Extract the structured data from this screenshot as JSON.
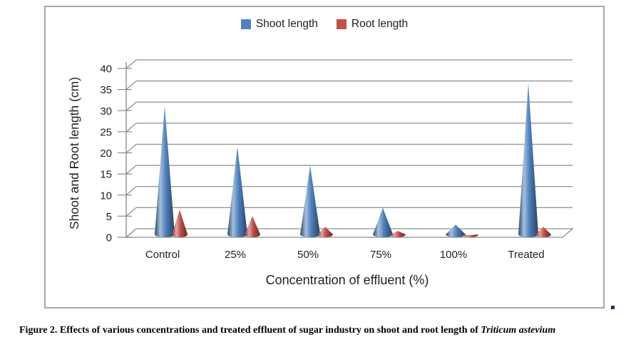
{
  "figure": {
    "caption_prefix": "Figure 2. Effects of various concentrations and treated effluent of sugar industry on shoot and root length of ",
    "caption_species_italic": "Triticum astevium"
  },
  "chart_data": {
    "type": "bar",
    "subtype": "3d-cone-columns",
    "categories": [
      "Control",
      "25%",
      "50%",
      "75%",
      "100%",
      "Treated"
    ],
    "series": [
      {
        "name": "Shoot length",
        "color": "#4F81BD",
        "values": [
          31,
          21.5,
          17,
          7,
          3,
          36.5
        ]
      },
      {
        "name": "Root length",
        "color": "#C0504D",
        "values": [
          6.5,
          5,
          2.5,
          1.5,
          0.5,
          2.5
        ]
      }
    ],
    "xlabel": "Concentration of effluent (%)",
    "ylabel": "Shoot and Root length (cm)",
    "ylim": [
      0,
      40
    ],
    "ytick_step": 5,
    "ytick_labels": [
      "0",
      "5",
      "10",
      "15",
      "20",
      "25",
      "30",
      "35",
      "40"
    ],
    "legend_position": "top-center",
    "grid": true,
    "text_color": "#1f1f1f",
    "grid_color": "#8e8e8e",
    "plot_background": "#ffffff"
  },
  "marks": {
    "stray_square_color": "#17375E"
  }
}
